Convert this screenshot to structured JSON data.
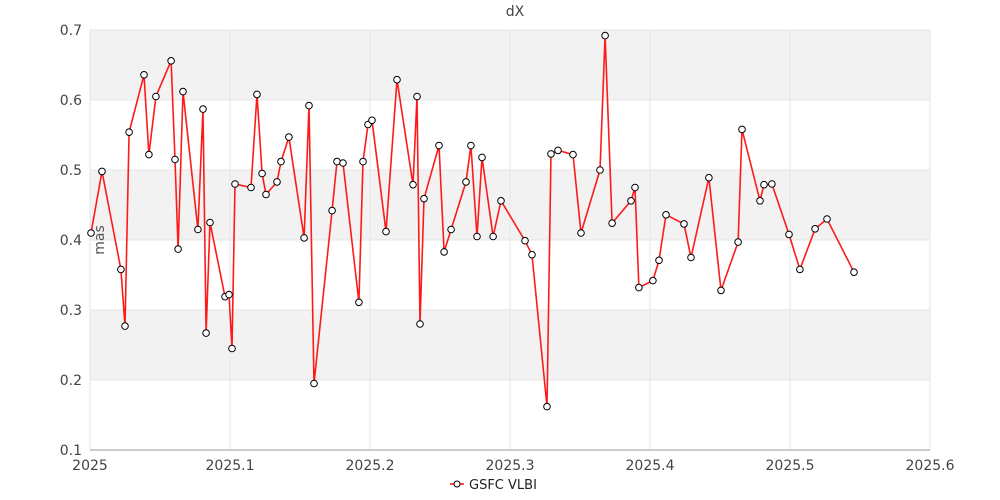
{
  "chart_data": {
    "type": "line",
    "title": "dX",
    "xlabel": "",
    "ylabel": "mas",
    "xlim": [
      2025,
      2025.6
    ],
    "ylim": [
      0.1,
      0.7
    ],
    "x_ticks": [
      "2025",
      "2025.1",
      "2025.2",
      "2025.3",
      "2025.4",
      "2025.5",
      "2025.6"
    ],
    "y_ticks": [
      "0.1",
      "0.2",
      "0.3",
      "0.4",
      "0.5",
      "0.6",
      "0.7"
    ],
    "grid": true,
    "legend_position": "bottom-center",
    "series": [
      {
        "name": "GSFC VLBI",
        "color": "#ff1a1a",
        "marker": "circle",
        "x": [
          2025.0007,
          2025.0086,
          2025.0221,
          2025.025,
          2025.0279,
          2025.0386,
          2025.0421,
          2025.0471,
          2025.0579,
          2025.0607,
          2025.0629,
          2025.0664,
          2025.0771,
          2025.0807,
          2025.0829,
          2025.0857,
          2025.0964,
          2025.0993,
          2025.1014,
          2025.1036,
          2025.115,
          2025.1193,
          2025.1229,
          2025.1257,
          2025.1336,
          2025.1364,
          2025.1421,
          2025.1529,
          2025.1564,
          2025.16,
          2025.1729,
          2025.1764,
          2025.1807,
          2025.1921,
          2025.195,
          2025.1986,
          2025.2014,
          2025.2114,
          2025.2193,
          2025.2307,
          2025.2336,
          2025.2357,
          2025.2386,
          2025.2493,
          2025.2529,
          2025.2579,
          2025.2686,
          2025.2721,
          2025.2764,
          2025.28,
          2025.2879,
          2025.2936,
          2025.3107,
          2025.3157,
          2025.3264,
          2025.3293,
          2025.3343,
          2025.345,
          2025.3507,
          2025.3643,
          2025.3679,
          2025.3729,
          2025.3864,
          2025.3893,
          2025.3921,
          2025.4021,
          2025.4064,
          2025.4114,
          2025.4243,
          2025.4293,
          2025.4421,
          2025.4507,
          2025.4629,
          2025.4657,
          2025.4786,
          2025.4814,
          2025.4871,
          2025.4993,
          2025.5071,
          2025.5179,
          2025.5264,
          2025.5457
        ],
        "y": [
          0.41,
          0.498,
          0.358,
          0.277,
          0.554,
          0.636,
          0.522,
          0.605,
          0.656,
          0.515,
          0.387,
          0.612,
          0.415,
          0.587,
          0.267,
          0.425,
          0.319,
          0.322,
          0.245,
          0.48,
          0.475,
          0.608,
          0.495,
          0.465,
          0.483,
          0.512,
          0.547,
          0.403,
          0.592,
          0.195,
          0.442,
          0.512,
          0.51,
          0.311,
          0.512,
          0.565,
          0.571,
          0.412,
          0.629,
          0.479,
          0.605,
          0.28,
          0.459,
          0.535,
          0.383,
          0.415,
          0.483,
          0.535,
          0.405,
          0.518,
          0.405,
          0.456,
          0.399,
          0.379,
          0.162,
          0.523,
          0.528,
          0.522,
          0.41,
          0.5,
          0.692,
          0.424,
          0.456,
          0.475,
          0.332,
          0.342,
          0.371,
          0.436,
          0.423,
          0.375,
          0.489,
          0.328,
          0.397,
          0.558,
          0.456,
          0.479,
          0.48,
          0.408,
          0.358,
          0.416,
          0.43,
          0.354
        ]
      }
    ]
  }
}
